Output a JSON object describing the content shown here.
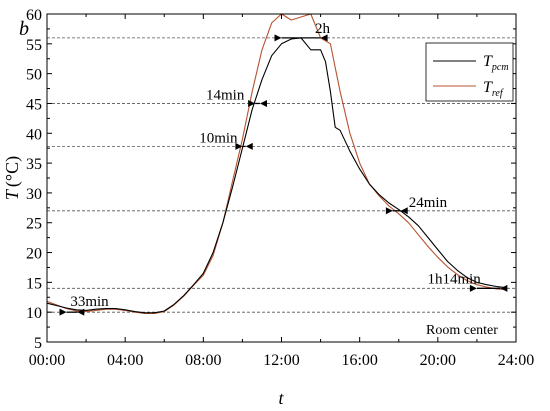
{
  "figure": {
    "panel_label": "b",
    "location_note": "Room center"
  },
  "chart_data": {
    "type": "line",
    "xlabel": "t",
    "ylabel": {
      "var": "T",
      "unit": "(°C)"
    },
    "xlim": [
      "00:00",
      "24:00"
    ],
    "ylim": [
      5,
      60
    ],
    "x_ticks": [
      "00:00",
      "04:00",
      "08:00",
      "12:00",
      "16:00",
      "20:00",
      "24:00"
    ],
    "y_ticks": [
      5,
      10,
      15,
      20,
      25,
      30,
      35,
      40,
      45,
      50,
      55,
      60
    ],
    "legend": {
      "placement": "top-right",
      "entries": [
        {
          "main": "T",
          "sub": "pcm"
        },
        {
          "main": "T",
          "sub": "ref"
        }
      ]
    },
    "reference_lines": [
      10,
      14,
      27,
      37.8,
      45,
      56
    ],
    "series": [
      {
        "name": "Tpcm",
        "color": "#000000",
        "x": [
          0,
          0.5,
          1,
          1.5,
          2,
          2.5,
          3,
          3.5,
          4,
          4.5,
          5,
          5.5,
          6,
          6.5,
          7,
          7.5,
          8,
          8.5,
          9,
          9.5,
          10,
          10.5,
          11,
          11.5,
          12,
          12.5,
          13,
          13.5,
          14,
          14.25,
          14.5,
          14.75,
          15,
          15.5,
          16,
          16.5,
          17,
          17.5,
          18,
          18.5,
          19,
          19.5,
          20,
          20.5,
          21,
          21.5,
          22,
          22.5,
          23,
          23.5
        ],
        "y": [
          11.5,
          11.1,
          10.7,
          10.4,
          10.3,
          10.5,
          10.6,
          10.6,
          10.4,
          10.1,
          9.9,
          9.9,
          10.2,
          11.3,
          12.8,
          14.6,
          16.5,
          20,
          25,
          31,
          37.5,
          44,
          49,
          53,
          55,
          55.8,
          56,
          54,
          54,
          52,
          47,
          41,
          40.5,
          37,
          34,
          31.5,
          29.7,
          28.3,
          27.2,
          26,
          24.5,
          22.5,
          20.5,
          18.5,
          17,
          15.8,
          15,
          14.6,
          14.3,
          14.1
        ]
      },
      {
        "name": "Tref",
        "color": "#b5532f",
        "x": [
          0,
          0.5,
          1,
          1.5,
          2,
          2.5,
          3,
          3.5,
          4,
          4.5,
          5,
          5.5,
          6,
          6.5,
          7,
          7.5,
          8,
          8.5,
          9,
          9.5,
          10,
          10.5,
          11,
          11.5,
          12,
          12.5,
          13,
          13.5,
          14,
          14.5,
          15,
          15.5,
          16,
          16.5,
          17,
          17.5,
          18,
          18.5,
          19,
          19.5,
          20,
          20.5,
          21,
          21.5,
          22,
          22.5,
          23,
          23.5
        ],
        "y": [
          11.8,
          11.2,
          10.6,
          10.2,
          10.1,
          10.3,
          10.5,
          10.5,
          10.3,
          10,
          9.8,
          9.8,
          10.1,
          11.2,
          12.7,
          14.5,
          16.2,
          19.5,
          25,
          32,
          39,
          47,
          54,
          58.5,
          60,
          59,
          59.5,
          60,
          56,
          55,
          47,
          40,
          35,
          31.5,
          29.5,
          27.8,
          26.5,
          25,
          23,
          21,
          19.2,
          17.6,
          16.3,
          15.3,
          14.6,
          14.2,
          13.9,
          13.8
        ]
      }
    ],
    "annotations": [
      {
        "text": "2h",
        "x": 13.2,
        "y": 56
      },
      {
        "text": "14min",
        "x": 10.1,
        "y": 45
      },
      {
        "text": "10min",
        "x": 9.75,
        "y": 37.8
      },
      {
        "text": "24min",
        "x": 18.0,
        "y": 27
      },
      {
        "text": "1h14min",
        "x": 22.2,
        "y": 14
      },
      {
        "text": "33min",
        "x": 1.4,
        "y": 10
      }
    ],
    "delay_markers": [
      {
        "y": 56,
        "x_start": 12.0,
        "x_end": 14.0
      },
      {
        "y": 45,
        "x_start": 10.65,
        "x_end": 10.9
      },
      {
        "y": 37.8,
        "x_start": 10.0,
        "x_end": 10.17
      },
      {
        "y": 27,
        "x_start": 17.7,
        "x_end": 18.1
      },
      {
        "y": 14,
        "x_start": 22.0,
        "x_end": 23.2
      },
      {
        "y": 10,
        "x_start": 1.0,
        "x_end": 1.55
      }
    ]
  }
}
